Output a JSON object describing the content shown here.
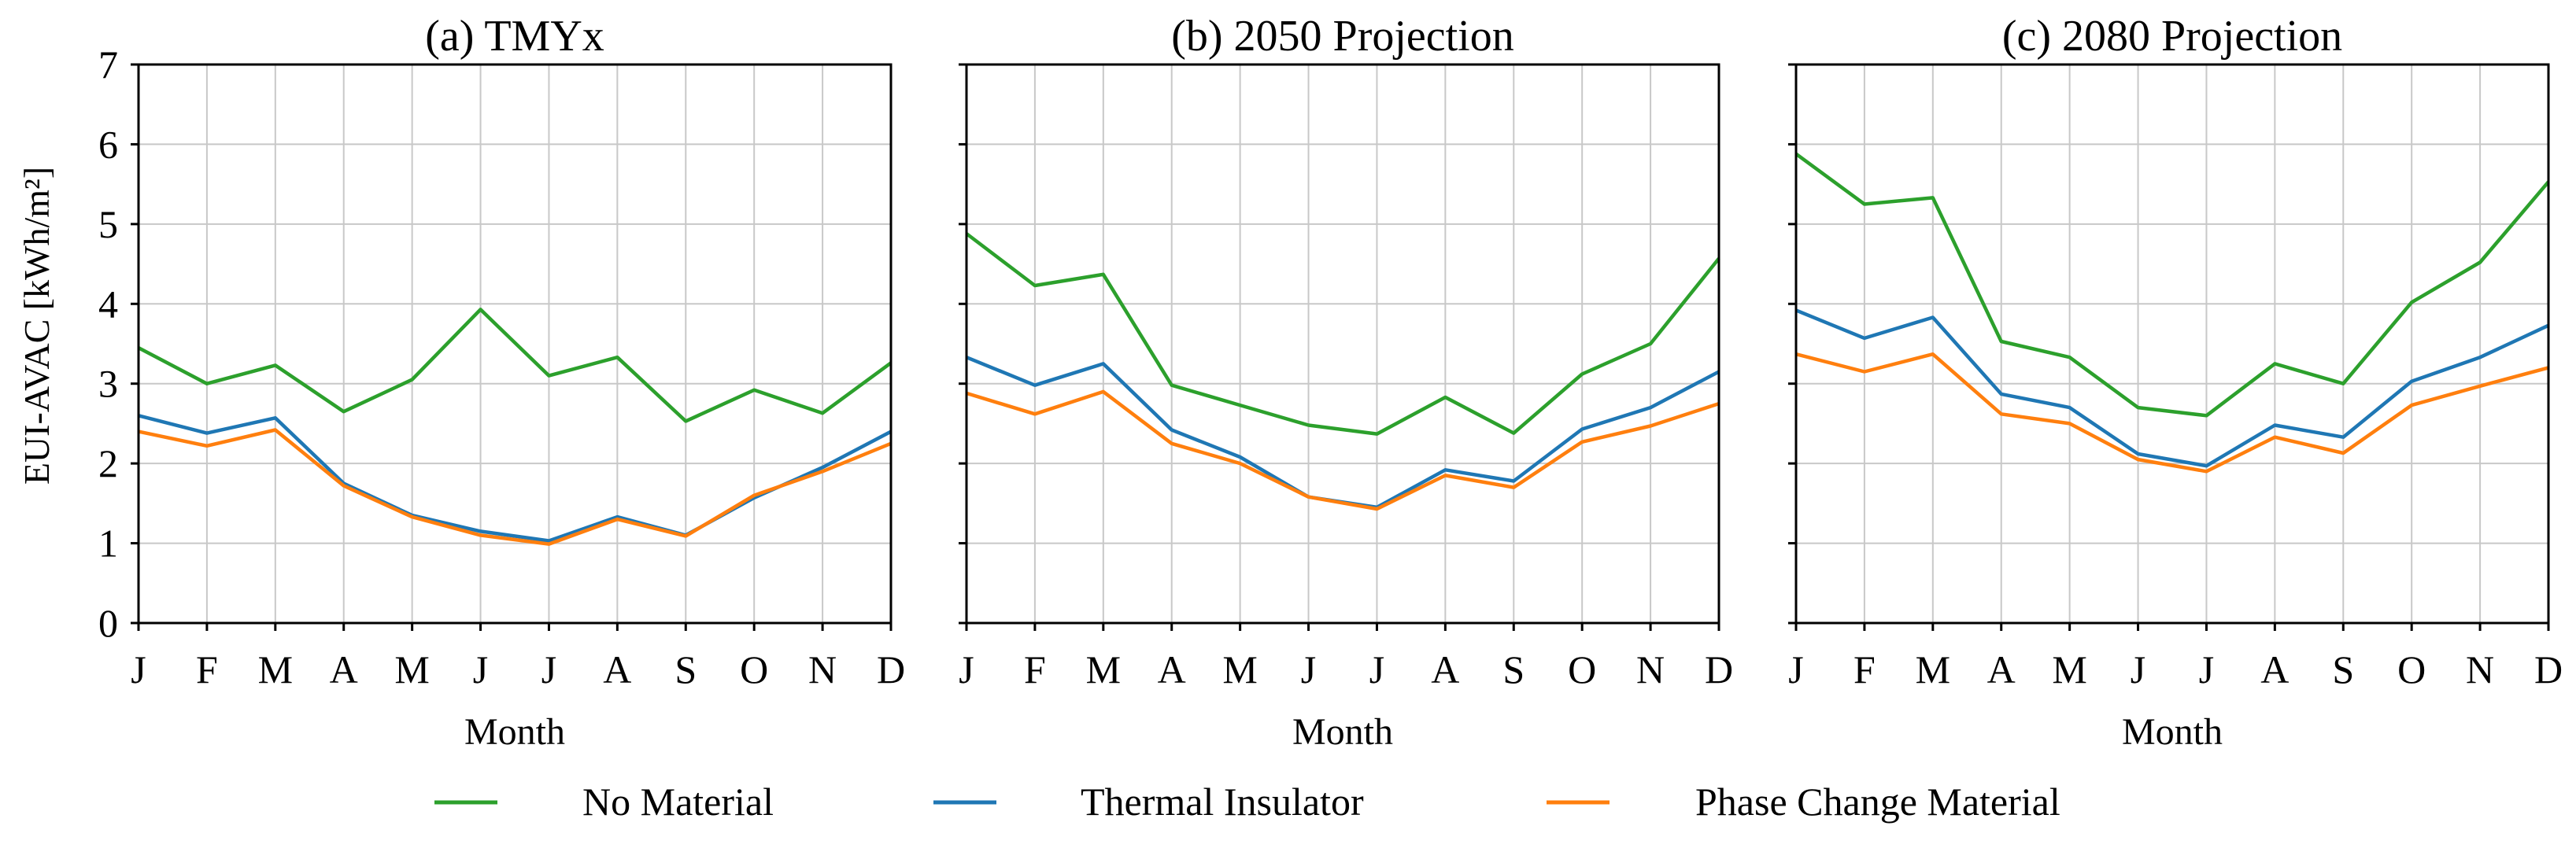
{
  "figure": {
    "ylabel": "EUI-AVAC [kWh/m²]",
    "xlabel": "Month",
    "legend": [
      {
        "key": "no_material",
        "label": "No Material",
        "color": "#2ca02c"
      },
      {
        "key": "thermal_insulator",
        "label": "Thermal Insulator",
        "color": "#1f77b4"
      },
      {
        "key": "phase_change",
        "label": "Phase Change Material",
        "color": "#ff7f0e"
      }
    ]
  },
  "chart_data": [
    {
      "type": "line",
      "title": "(a) TMYx",
      "xlabel": "Month",
      "ylabel": "EUI-AVAC [kWh/m²]",
      "categories": [
        "J",
        "F",
        "M",
        "A",
        "M",
        "J",
        "J",
        "A",
        "S",
        "O",
        "N",
        "D"
      ],
      "ylim": [
        0,
        7
      ],
      "yticks": [
        0,
        1,
        2,
        3,
        4,
        5,
        6,
        7
      ],
      "grid": true,
      "series": [
        {
          "name": "No Material",
          "color": "#2ca02c",
          "values": [
            3.45,
            3.0,
            3.23,
            2.65,
            3.05,
            3.93,
            3.1,
            3.33,
            2.53,
            2.92,
            2.63,
            3.26
          ]
        },
        {
          "name": "Thermal Insulator",
          "color": "#1f77b4",
          "values": [
            2.6,
            2.38,
            2.57,
            1.75,
            1.35,
            1.15,
            1.03,
            1.33,
            1.1,
            1.57,
            1.95,
            2.4
          ]
        },
        {
          "name": "Phase Change Material",
          "color": "#ff7f0e",
          "values": [
            2.4,
            2.22,
            2.42,
            1.72,
            1.33,
            1.1,
            0.99,
            1.3,
            1.09,
            1.6,
            1.9,
            2.25
          ]
        }
      ]
    },
    {
      "type": "line",
      "title": "(b) 2050 Projection",
      "xlabel": "Month",
      "ylabel": "",
      "categories": [
        "J",
        "F",
        "M",
        "A",
        "M",
        "J",
        "J",
        "A",
        "S",
        "O",
        "N",
        "D"
      ],
      "ylim": [
        0,
        7
      ],
      "yticks": [
        0,
        1,
        2,
        3,
        4,
        5,
        6,
        7
      ],
      "grid": true,
      "series": [
        {
          "name": "No Material",
          "color": "#2ca02c",
          "values": [
            4.88,
            4.23,
            4.37,
            2.98,
            2.73,
            2.48,
            2.37,
            2.83,
            2.38,
            3.12,
            3.5,
            4.57
          ]
        },
        {
          "name": "Thermal Insulator",
          "color": "#1f77b4",
          "values": [
            3.33,
            2.98,
            3.25,
            2.42,
            2.08,
            1.58,
            1.45,
            1.92,
            1.78,
            2.43,
            2.7,
            3.15
          ]
        },
        {
          "name": "Phase Change Material",
          "color": "#ff7f0e",
          "values": [
            2.88,
            2.62,
            2.9,
            2.25,
            2.0,
            1.58,
            1.43,
            1.85,
            1.7,
            2.27,
            2.47,
            2.75
          ]
        }
      ]
    },
    {
      "type": "line",
      "title": "(c) 2080 Projection",
      "xlabel": "Month",
      "ylabel": "",
      "categories": [
        "J",
        "F",
        "M",
        "A",
        "M",
        "J",
        "J",
        "A",
        "S",
        "O",
        "N",
        "D"
      ],
      "ylim": [
        0,
        7
      ],
      "yticks": [
        0,
        1,
        2,
        3,
        4,
        5,
        6,
        7
      ],
      "grid": true,
      "series": [
        {
          "name": "No Material",
          "color": "#2ca02c",
          "values": [
            5.88,
            5.25,
            5.33,
            3.53,
            3.33,
            2.7,
            2.6,
            3.25,
            3.0,
            4.02,
            4.52,
            5.53
          ]
        },
        {
          "name": "Thermal Insulator",
          "color": "#1f77b4",
          "values": [
            3.92,
            3.57,
            3.83,
            2.87,
            2.7,
            2.12,
            1.97,
            2.48,
            2.33,
            3.03,
            3.33,
            3.73
          ]
        },
        {
          "name": "Phase Change Material",
          "color": "#ff7f0e",
          "values": [
            3.37,
            3.15,
            3.37,
            2.62,
            2.5,
            2.05,
            1.9,
            2.33,
            2.13,
            2.73,
            2.97,
            3.2
          ]
        }
      ]
    }
  ]
}
